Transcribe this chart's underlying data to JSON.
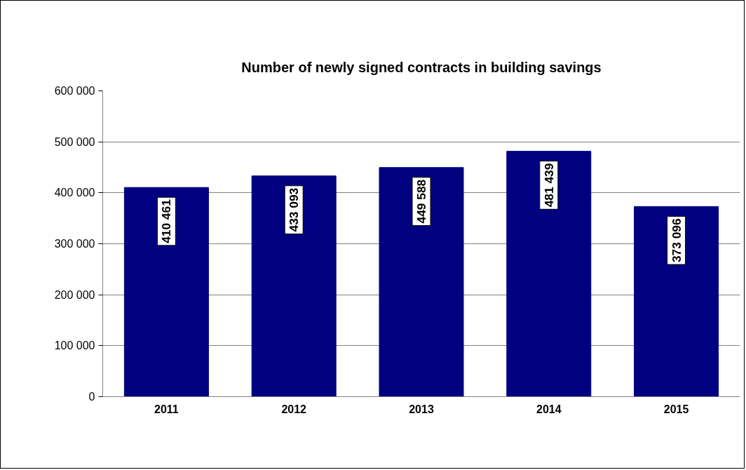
{
  "chart_data": {
    "type": "bar",
    "title": "Number of newly signed contracts in building savings",
    "categories": [
      "2011",
      "2012",
      "2013",
      "2014",
      "2015"
    ],
    "values": [
      410461,
      433093,
      449588,
      481439,
      373096
    ],
    "value_labels": [
      "410 461",
      "433 093",
      "449 588",
      "481 439",
      "373 096"
    ],
    "color": "#000080",
    "ylim": [
      0,
      600000
    ],
    "yticks": [
      {
        "value": 0,
        "label": "0"
      },
      {
        "value": 100000,
        "label": "100 000"
      },
      {
        "value": 200000,
        "label": "200 000"
      },
      {
        "value": 300000,
        "label": "300 000"
      },
      {
        "value": 400000,
        "label": "400 000"
      },
      {
        "value": 500000,
        "label": "500 000"
      },
      {
        "value": 600000,
        "label": "600 000"
      }
    ],
    "grid": "y"
  }
}
